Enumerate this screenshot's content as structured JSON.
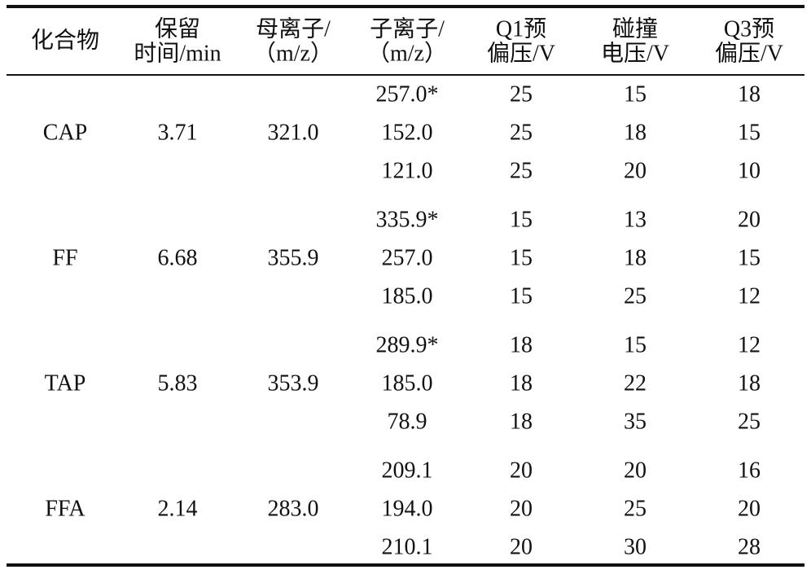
{
  "table": {
    "header": [
      [
        "化合物"
      ],
      [
        "保留",
        "时间/min"
      ],
      [
        "母离子/",
        "（m/z）"
      ],
      [
        "子离子/",
        "（m/z）"
      ],
      [
        "Q1预",
        "偏压/V"
      ],
      [
        "碰撞",
        "电压/V"
      ],
      [
        "Q3预",
        "偏压/V"
      ]
    ],
    "groups": [
      {
        "compound": "CAP",
        "retention": "3.71",
        "parent": "321.0",
        "rows": [
          [
            "257.0*",
            "25",
            "15",
            "18"
          ],
          [
            "152.0",
            "25",
            "18",
            "15"
          ],
          [
            "121.0",
            "25",
            "20",
            "10"
          ]
        ]
      },
      {
        "compound": "FF",
        "retention": "6.68",
        "parent": "355.9",
        "rows": [
          [
            "335.9*",
            "15",
            "13",
            "20"
          ],
          [
            "257.0",
            "15",
            "18",
            "15"
          ],
          [
            "185.0",
            "15",
            "25",
            "12"
          ]
        ]
      },
      {
        "compound": "TAP",
        "retention": "5.83",
        "parent": "353.9",
        "rows": [
          [
            "289.9*",
            "18",
            "15",
            "12"
          ],
          [
            "185.0",
            "18",
            "22",
            "18"
          ],
          [
            "78.9",
            "18",
            "35",
            "25"
          ]
        ]
      },
      {
        "compound": "FFA",
        "retention": "2.14",
        "parent": "283.0",
        "rows": [
          [
            "209.1",
            "20",
            "20",
            "16"
          ],
          [
            "194.0",
            "20",
            "25",
            "20"
          ],
          [
            "210.1",
            "20",
            "30",
            "28"
          ]
        ]
      }
    ]
  }
}
